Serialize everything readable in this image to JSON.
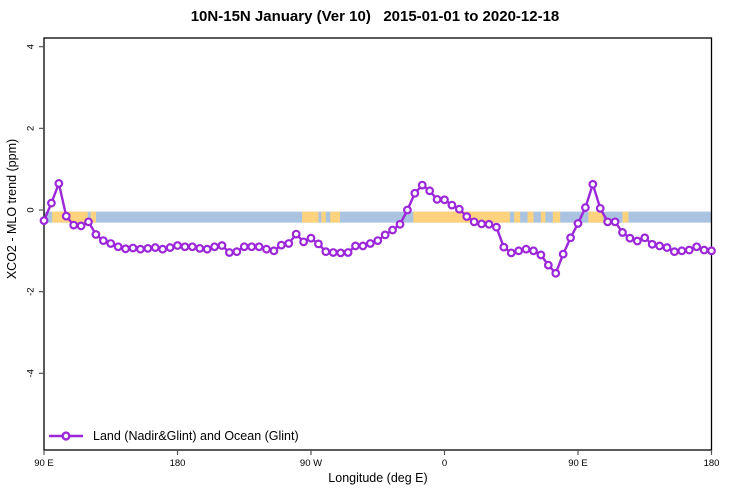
{
  "header": {
    "title": "10N-15N January (Ver 10)   2015-01-01 to 2020-12-18"
  },
  "chart_data": {
    "type": "line",
    "title": "10N-15N January (Ver 10)   2015-01-01 to 2020-12-18",
    "xlabel": "Longitude (deg E)",
    "ylabel": "XCO2 - MLO trend (ppm)",
    "grid": false,
    "legend_position": "bottom-left-inside",
    "x_axis": {
      "start_lon_deg_e": 90,
      "span_deg": 450,
      "step_deg": 5,
      "ticks": [
        {
          "label": "90 E",
          "offset_deg": 0
        },
        {
          "label": "180",
          "offset_deg": 90
        },
        {
          "label": "90 W",
          "offset_deg": 180
        },
        {
          "label": "0",
          "offset_deg": 270
        },
        {
          "label": "90 E",
          "offset_deg": 360
        },
        {
          "label": "180",
          "offset_deg": 450
        }
      ]
    },
    "y_axis": {
      "tick_labels": [
        "4",
        "2",
        "0",
        "-2",
        "-4"
      ],
      "tick_values": [
        4,
        2,
        0,
        -2,
        -4
      ],
      "lim": [
        -5.9,
        4.2
      ]
    },
    "series": [
      {
        "name": "Land (Nadir&Glint) and Ocean (Glint)",
        "color": "#9c27d9",
        "marker": "open-circle",
        "values": [
          -0.26,
          0.17,
          0.65,
          -0.15,
          -0.37,
          -0.39,
          -0.29,
          -0.6,
          -0.75,
          -0.82,
          -0.9,
          -0.95,
          -0.93,
          -0.96,
          -0.94,
          -0.92,
          -0.96,
          -0.92,
          -0.87,
          -0.9,
          -0.9,
          -0.94,
          -0.96,
          -0.9,
          -0.87,
          -1.04,
          -1.02,
          -0.9,
          -0.9,
          -0.9,
          -0.96,
          -1.0,
          -0.86,
          -0.82,
          -0.59,
          -0.78,
          -0.69,
          -0.83,
          -1.02,
          -1.04,
          -1.05,
          -1.04,
          -0.88,
          -0.88,
          -0.82,
          -0.75,
          -0.61,
          -0.49,
          -0.35,
          0.0,
          0.41,
          0.61,
          0.47,
          0.26,
          0.25,
          0.12,
          0.02,
          -0.16,
          -0.29,
          -0.34,
          -0.35,
          -0.42,
          -0.91,
          -1.05,
          -1.0,
          -0.96,
          -1.0,
          -1.1,
          -1.35,
          -1.55,
          -1.08,
          -0.68,
          -0.33,
          0.06,
          0.63,
          0.04,
          -0.29,
          -0.29,
          -0.55,
          -0.69,
          -0.76,
          -0.68,
          -0.84,
          -0.88,
          -0.92,
          -1.02,
          -1.0,
          -0.98,
          -0.9,
          -0.98,
          -1.0
        ]
      }
    ],
    "map_strip": {
      "description": "land-ocean strip for latitude band 10N-15N",
      "value_top": -0.04,
      "value_bottom": -0.31,
      "ocean_color": "#a9c3e1",
      "land_color": "#ffd37e",
      "land_segments_offset_deg": [
        [
          5.5,
          29.5
        ],
        [
          31.5,
          35.0
        ],
        [
          174.0,
          185.0
        ],
        [
          187.0,
          190.0
        ],
        [
          193.0,
          199.5
        ],
        [
          249.0,
          314.0
        ],
        [
          317.0,
          321.0
        ],
        [
          326.0,
          330.0
        ],
        [
          335.0,
          338.0
        ],
        [
          343.0,
          348.0
        ],
        [
          367.0,
          377.0
        ],
        [
          390.0,
          394.0
        ]
      ]
    },
    "colors": {
      "axis_box": "#000000",
      "tick": "#555555",
      "text": "#000000"
    }
  }
}
